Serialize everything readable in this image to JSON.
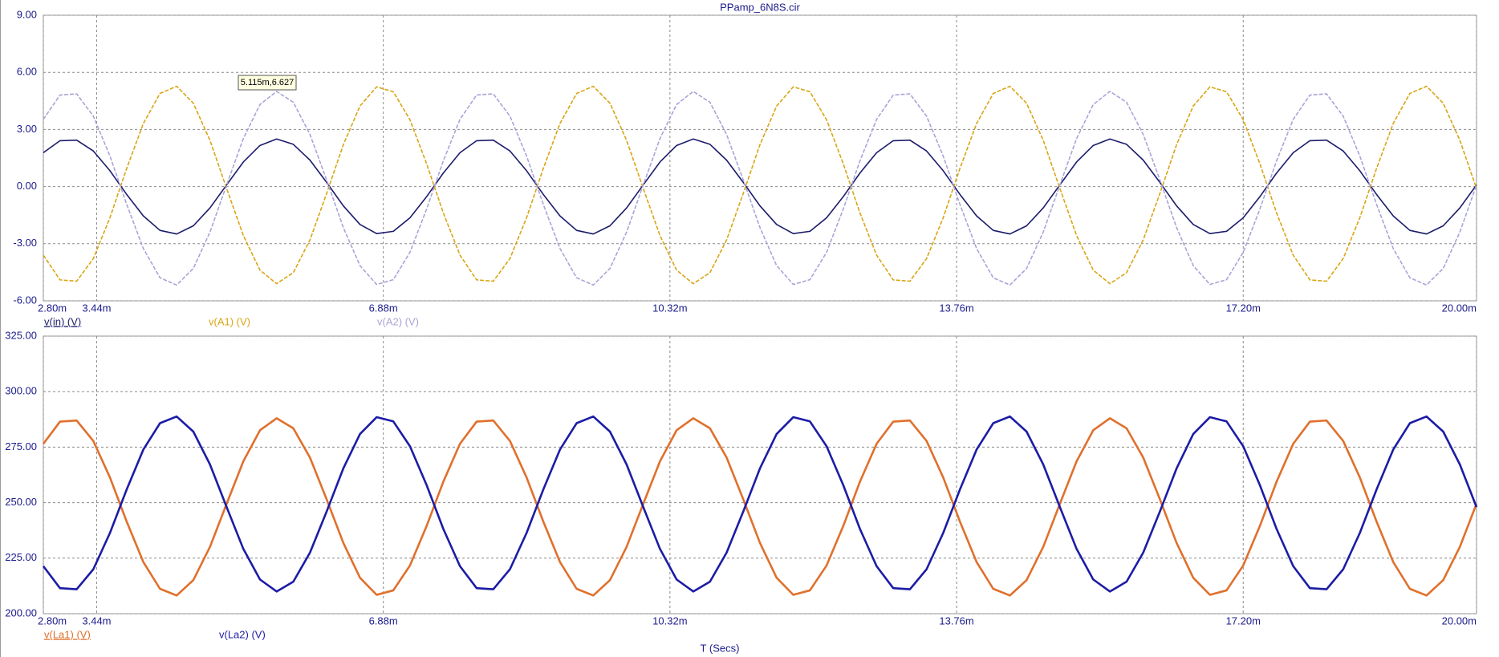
{
  "chart_data": [
    {
      "type": "line",
      "title": "PPamp_6N8S.cir",
      "annotation": "5.115m,6.627",
      "x": [
        2.8,
        3.0,
        3.2,
        3.4,
        3.6,
        3.8,
        4.0,
        4.2,
        4.4,
        4.6,
        4.8,
        5.0,
        5.2,
        5.4,
        5.6,
        5.8,
        6.0,
        6.2,
        6.4,
        6.6,
        6.8,
        7.0,
        7.2,
        7.4,
        7.6,
        7.8,
        8.0,
        8.2,
        8.4,
        8.6,
        8.8,
        9.0,
        9.2,
        9.4,
        9.6,
        9.8,
        10.0,
        10.2,
        10.4,
        10.6,
        10.8,
        11.0,
        11.2,
        11.4,
        11.6,
        11.8,
        12.0,
        12.2,
        12.4,
        12.6,
        12.8,
        13.0,
        13.2,
        13.4,
        13.6,
        13.8,
        14.0,
        14.2,
        14.4,
        14.6,
        14.8,
        15.0,
        15.2,
        15.4,
        15.6,
        15.8,
        16.0,
        16.2,
        16.4,
        16.6,
        16.8,
        17.0,
        17.2,
        17.4,
        17.6,
        17.8,
        18.0,
        18.2,
        18.4,
        18.6,
        18.8,
        19.0,
        19.2,
        19.4,
        19.6,
        19.8,
        20.0
      ],
      "series": [
        {
          "name": "v(in) (V)",
          "color": "#1b1b6b",
          "dashed": false,
          "values": [
            1.78,
            2.41,
            2.44,
            1.87,
            0.83,
            -0.41,
            -1.54,
            -2.3,
            -2.49,
            -2.06,
            -1.12,
            0.09,
            1.29,
            2.16,
            2.5,
            2.22,
            1.39,
            0.22,
            -1.01,
            -1.99,
            -2.47,
            -2.35,
            -1.64,
            -0.53,
            0.71,
            1.78,
            2.41,
            2.44,
            1.87,
            0.83,
            -0.41,
            -1.54,
            -2.3,
            -2.49,
            -2.06,
            -1.12,
            0.09,
            1.29,
            2.16,
            2.5,
            2.22,
            1.39,
            0.22,
            -1.01,
            -1.99,
            -2.47,
            -2.35,
            -1.64,
            -0.53,
            0.71,
            1.78,
            2.41,
            2.44,
            1.87,
            0.83,
            -0.41,
            -1.54,
            -2.3,
            -2.49,
            -2.06,
            -1.12,
            0.09,
            1.29,
            2.16,
            2.5,
            2.22,
            1.39,
            0.22,
            -1.01,
            -1.99,
            -2.47,
            -2.35,
            -1.64,
            -0.53,
            0.71,
            1.78,
            2.41,
            2.44,
            1.87,
            0.83,
            -0.41,
            -1.54,
            -2.3,
            -2.49,
            -2.06,
            -1.12,
            0.09
          ]
        },
        {
          "name": "v(A1) (V)",
          "color": "#d9a514",
          "dashed": true,
          "values": [
            -3.6,
            -4.9,
            -4.97,
            -3.78,
            -1.63,
            0.95,
            3.31,
            4.89,
            5.27,
            4.38,
            2.43,
            -0.1,
            -2.57,
            -4.39,
            -5.1,
            -4.52,
            -2.8,
            -0.36,
            2.2,
            4.23,
            5.24,
            4.98,
            3.51,
            1.2,
            -1.38,
            -3.6,
            -4.9,
            -4.97,
            -3.78,
            -1.63,
            0.95,
            3.31,
            4.89,
            5.27,
            4.38,
            2.43,
            -0.1,
            -2.57,
            -4.39,
            -5.1,
            -4.52,
            -2.8,
            -0.36,
            2.2,
            4.23,
            5.24,
            4.98,
            3.51,
            1.2,
            -1.38,
            -3.6,
            -4.9,
            -4.97,
            -3.78,
            -1.63,
            0.95,
            3.31,
            4.89,
            5.27,
            4.38,
            2.43,
            -0.1,
            -2.57,
            -4.39,
            -5.1,
            -4.52,
            -2.8,
            -0.36,
            2.2,
            4.23,
            5.24,
            4.98,
            3.51,
            1.2,
            -1.38,
            -3.6,
            -4.9,
            -4.97,
            -3.78,
            -1.63,
            0.95,
            3.31,
            4.89,
            5.27,
            4.38,
            2.43,
            -0.1
          ]
        },
        {
          "name": "v(A2) (V)",
          "color": "#a9a4d8",
          "dashed": true,
          "values": [
            3.53,
            4.81,
            4.87,
            3.7,
            1.6,
            -0.93,
            -3.25,
            -4.79,
            -5.17,
            -4.3,
            -2.39,
            0.09,
            2.52,
            4.31,
            5.0,
            4.43,
            2.74,
            0.35,
            -2.15,
            -4.15,
            -5.14,
            -4.89,
            -3.45,
            -1.18,
            1.35,
            3.53,
            4.81,
            4.87,
            3.7,
            1.6,
            -0.93,
            -3.25,
            -4.79,
            -5.17,
            -4.3,
            -2.39,
            0.09,
            2.52,
            4.31,
            5.0,
            4.43,
            2.74,
            0.35,
            -2.15,
            -4.15,
            -5.14,
            -4.89,
            -3.45,
            -1.18,
            1.35,
            3.53,
            4.81,
            4.87,
            3.7,
            1.6,
            -0.93,
            -3.25,
            -4.79,
            -5.17,
            -4.3,
            -2.39,
            0.09,
            2.52,
            4.31,
            5.0,
            4.43,
            2.74,
            0.35,
            -2.15,
            -4.15,
            -5.14,
            -4.89,
            -3.45,
            -1.18,
            1.35,
            3.53,
            4.81,
            4.87,
            3.7,
            1.6,
            -0.93,
            -3.25,
            -4.79,
            -5.17,
            -4.3,
            -2.39,
            0.09
          ]
        }
      ],
      "xlim": [
        2.8,
        20.0
      ],
      "xticks": [
        {
          "value": 2.8,
          "label": "2.80m"
        },
        {
          "value": 3.44,
          "label": "3.44m"
        },
        {
          "value": 6.88,
          "label": "6.88m"
        },
        {
          "value": 10.32,
          "label": "10.32m"
        },
        {
          "value": 13.76,
          "label": "13.76m"
        },
        {
          "value": 17.2,
          "label": "17.20m"
        },
        {
          "value": 20.0,
          "label": "20.00m"
        }
      ],
      "ylim": [
        -6,
        9
      ],
      "yticks": [
        {
          "value": 9,
          "label": "9.00"
        },
        {
          "value": 6,
          "label": "6.00"
        },
        {
          "value": 3,
          "label": "3.00"
        },
        {
          "value": 0,
          "label": "0.00"
        },
        {
          "value": -3,
          "label": "-3.00"
        },
        {
          "value": -6,
          "label": "-6.00"
        }
      ],
      "grid": true
    },
    {
      "type": "line",
      "x_label": "T (Secs)",
      "x": [
        2.8,
        3.0,
        3.2,
        3.4,
        3.6,
        3.8,
        4.0,
        4.2,
        4.4,
        4.6,
        4.8,
        5.0,
        5.2,
        5.4,
        5.6,
        5.8,
        6.0,
        6.2,
        6.4,
        6.6,
        6.8,
        7.0,
        7.2,
        7.4,
        7.6,
        7.8,
        8.0,
        8.2,
        8.4,
        8.6,
        8.8,
        9.0,
        9.2,
        9.4,
        9.6,
        9.8,
        10.0,
        10.2,
        10.4,
        10.6,
        10.8,
        11.0,
        11.2,
        11.4,
        11.6,
        11.8,
        12.0,
        12.2,
        12.4,
        12.6,
        12.8,
        13.0,
        13.2,
        13.4,
        13.6,
        13.8,
        14.0,
        14.2,
        14.4,
        14.6,
        14.8,
        15.0,
        15.2,
        15.4,
        15.6,
        15.8,
        16.0,
        16.2,
        16.4,
        16.6,
        16.8,
        17.0,
        17.2,
        17.4,
        17.6,
        17.8,
        18.0,
        18.2,
        18.4,
        18.6,
        18.8,
        19.0,
        19.2,
        19.4,
        19.6,
        19.8,
        20.0
      ],
      "series": [
        {
          "name": "v(La1) (V)",
          "color": "#e0702c",
          "dashed": false,
          "values": [
            276.5,
            286.5,
            287.0,
            277.8,
            261.3,
            241.5,
            223.3,
            211.2,
            208.2,
            215.1,
            230.1,
            249.5,
            268.6,
            282.6,
            288.0,
            283.5,
            270.3,
            251.5,
            231.9,
            216.2,
            208.5,
            210.5,
            221.7,
            239.5,
            259.4,
            276.5,
            286.5,
            287.0,
            277.8,
            261.3,
            241.5,
            223.3,
            211.2,
            208.2,
            215.1,
            230.1,
            249.5,
            268.6,
            282.6,
            288.0,
            283.5,
            270.3,
            251.5,
            231.9,
            216.2,
            208.5,
            210.5,
            221.7,
            239.5,
            259.4,
            276.5,
            286.5,
            287.0,
            277.8,
            261.3,
            241.5,
            223.3,
            211.2,
            208.2,
            215.1,
            230.1,
            249.5,
            268.6,
            282.6,
            288.0,
            283.5,
            270.3,
            251.5,
            231.9,
            216.2,
            208.5,
            210.5,
            221.7,
            239.5,
            259.4,
            276.5,
            286.5,
            287.0,
            277.8,
            261.3,
            241.5,
            223.3,
            211.2,
            208.2,
            215.1,
            230.1,
            249.5
          ]
        },
        {
          "name": "v(La2) (V)",
          "color": "#1c1ca6",
          "dashed": false,
          "values": [
            221.4,
            211.5,
            211.0,
            220.0,
            236.4,
            255.9,
            273.9,
            285.8,
            288.8,
            282.0,
            267.2,
            248.0,
            229.2,
            215.4,
            210.0,
            214.4,
            227.5,
            246.0,
            265.4,
            280.9,
            288.5,
            286.6,
            275.4,
            257.9,
            238.2,
            221.4,
            211.5,
            211.0,
            220.0,
            236.4,
            255.9,
            273.9,
            285.8,
            288.8,
            282.0,
            267.2,
            248.0,
            229.2,
            215.4,
            210.0,
            214.4,
            227.5,
            246.0,
            265.4,
            280.9,
            288.5,
            286.6,
            275.4,
            257.9,
            238.2,
            221.4,
            211.5,
            211.0,
            220.0,
            236.4,
            255.9,
            273.9,
            285.8,
            288.8,
            282.0,
            267.2,
            248.0,
            229.2,
            215.4,
            210.0,
            214.4,
            227.5,
            246.0,
            265.4,
            280.9,
            288.5,
            286.6,
            275.4,
            257.9,
            238.2,
            221.4,
            211.5,
            211.0,
            220.0,
            236.4,
            255.9,
            273.9,
            285.8,
            288.8,
            282.0,
            267.2,
            248.0
          ]
        }
      ],
      "xlim": [
        2.8,
        20.0
      ],
      "xticks": [
        {
          "value": 2.8,
          "label": "2.80m"
        },
        {
          "value": 3.44,
          "label": "3.44m"
        },
        {
          "value": 6.88,
          "label": "6.88m"
        },
        {
          "value": 10.32,
          "label": "10.32m"
        },
        {
          "value": 13.76,
          "label": "13.76m"
        },
        {
          "value": 17.2,
          "label": "17.20m"
        },
        {
          "value": 20.0,
          "label": "20.00m"
        }
      ],
      "ylim": [
        200,
        325
      ],
      "yticks": [
        {
          "value": 325,
          "label": "325.00"
        },
        {
          "value": 300,
          "label": "300.00"
        },
        {
          "value": 275,
          "label": "275.00"
        },
        {
          "value": 250,
          "label": "250.00"
        },
        {
          "value": 225,
          "label": "225.00"
        },
        {
          "value": 200,
          "label": "200.00"
        }
      ],
      "grid": true
    }
  ]
}
